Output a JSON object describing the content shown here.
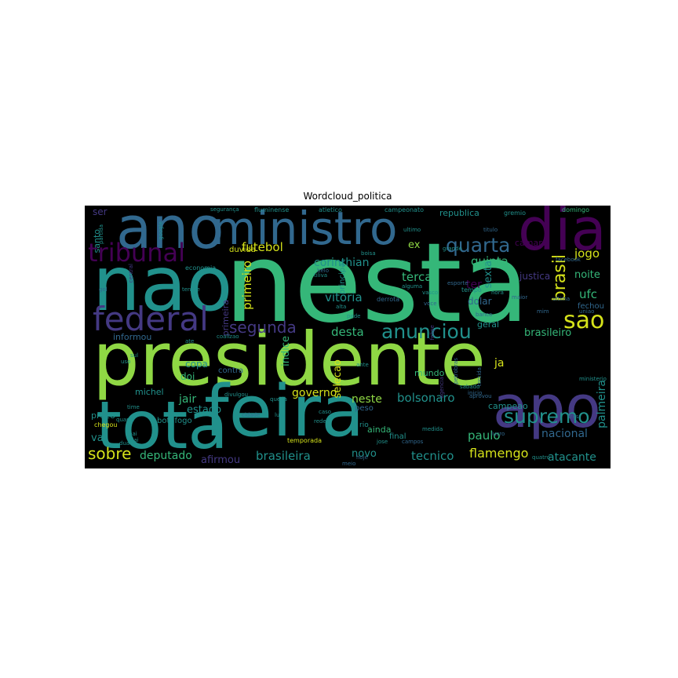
{
  "figure": {
    "title": "Wordcloud_politica",
    "palette": {
      "yellow": "#d5e21a",
      "lime": "#8fd744",
      "green": "#35b779",
      "teal": "#21918c",
      "blue": "#31688e",
      "indigo": "#443983",
      "purple": "#440154",
      "background": "#000000"
    },
    "words": [
      {
        "text": "nesta",
        "color": "green"
      },
      {
        "text": "presidente",
        "color": "lime"
      },
      {
        "text": "nao",
        "color": "teal"
      },
      {
        "text": "feira",
        "color": "teal"
      },
      {
        "text": "ano",
        "color": "blue"
      },
      {
        "text": "ministro",
        "color": "blue"
      },
      {
        "text": "dia",
        "color": "purple"
      },
      {
        "text": "apo",
        "color": "indigo"
      },
      {
        "text": "tota",
        "color": "teal"
      },
      {
        "text": "federal",
        "color": "indigo"
      },
      {
        "text": "tribunal",
        "color": "purple"
      },
      {
        "text": "anunciou",
        "color": "teal"
      },
      {
        "text": "sao",
        "color": "yellow"
      },
      {
        "text": "supremo",
        "color": "teal"
      },
      {
        "text": "quarta",
        "color": "blue"
      },
      {
        "text": "sobre",
        "color": "yellow"
      },
      {
        "text": "segunda",
        "color": "indigo"
      },
      {
        "text": "brasil",
        "color": "yellow"
      },
      {
        "text": "flamengo",
        "color": "yellow"
      },
      {
        "text": "deputado",
        "color": "green"
      },
      {
        "text": "brasileira",
        "color": "teal"
      },
      {
        "text": "bolsonaro",
        "color": "teal"
      },
      {
        "text": "paulo",
        "color": "green"
      },
      {
        "text": "tecnico",
        "color": "teal"
      },
      {
        "text": "nacional",
        "color": "blue"
      },
      {
        "text": "atacante",
        "color": "teal"
      },
      {
        "text": "palmeira",
        "color": "teal"
      },
      {
        "text": "jogo",
        "color": "yellow"
      },
      {
        "text": "quinta",
        "color": "green"
      },
      {
        "text": "terca",
        "color": "green"
      },
      {
        "text": "vitoria",
        "color": "teal"
      },
      {
        "text": "desta",
        "color": "green"
      },
      {
        "text": "futebol",
        "color": "yellow"
      },
      {
        "text": "corinthian",
        "color": "teal"
      },
      {
        "text": "primeiro",
        "color": "yellow"
      },
      {
        "text": "governo",
        "color": "yellow"
      },
      {
        "text": "neste",
        "color": "lime"
      },
      {
        "text": "jair",
        "color": "green"
      },
      {
        "text": "estado",
        "color": "teal"
      },
      {
        "text": "afirmou",
        "color": "indigo"
      },
      {
        "text": "novo",
        "color": "teal"
      },
      {
        "text": "ufc",
        "color": "green"
      },
      {
        "text": "noite",
        "color": "green"
      },
      {
        "text": "sexta",
        "color": "teal"
      },
      {
        "text": "brasileiro",
        "color": "green"
      },
      {
        "text": "camara",
        "color": "purple"
      },
      {
        "text": "republica",
        "color": "teal"
      },
      {
        "text": "ex",
        "color": "lime"
      },
      {
        "text": "indice",
        "color": "green"
      },
      {
        "text": "selecao",
        "color": "yellow"
      },
      {
        "text": "ja",
        "color": "yellow"
      },
      {
        "text": "copa",
        "color": "teal"
      },
      {
        "text": "doi",
        "color": "green"
      },
      {
        "text": "vai",
        "color": "teal"
      },
      {
        "text": "preco",
        "color": "teal"
      },
      {
        "text": "michel",
        "color": "teal"
      },
      {
        "text": "justica",
        "color": "indigo"
      },
      {
        "text": "ter",
        "color": "purple"
      },
      {
        "text": "geral",
        "color": "teal"
      },
      {
        "text": "dolar",
        "color": "blue"
      },
      {
        "text": "mundo",
        "color": "green"
      },
      {
        "text": "campeao",
        "color": "teal"
      },
      {
        "text": "fechou",
        "color": "blue"
      },
      {
        "text": "santo",
        "color": "teal"
      },
      {
        "text": "ser",
        "color": "indigo"
      },
      {
        "text": "informou",
        "color": "blue"
      },
      {
        "text": "principal",
        "color": "teal"
      },
      {
        "text": "duvida",
        "color": "yellow"
      },
      {
        "text": "contra",
        "color": "blue"
      },
      {
        "text": "primeira",
        "color": "indigo"
      },
      {
        "text": "botafogo",
        "color": "teal"
      },
      {
        "text": "ainda",
        "color": "green"
      },
      {
        "text": "final",
        "color": "teal"
      },
      {
        "text": "peso",
        "color": "blue"
      },
      {
        "text": "rio",
        "color": "teal"
      },
      {
        "text": "fluminense",
        "color": "teal"
      },
      {
        "text": "atletico",
        "color": "teal"
      },
      {
        "text": "campeonato",
        "color": "teal"
      },
      {
        "text": "gremio",
        "color": "teal"
      },
      {
        "text": "domingo",
        "color": "green"
      },
      {
        "text": "economia",
        "color": "teal"
      },
      {
        "text": "temporada",
        "color": "yellow"
      },
      {
        "text": "chegou",
        "color": "yellow"
      },
      {
        "text": "tempo",
        "color": "teal"
      },
      {
        "text": "derrota",
        "color": "blue"
      },
      {
        "text": "quatro",
        "color": "teal"
      },
      {
        "text": "banco",
        "color": "blue"
      },
      {
        "text": "maior",
        "color": "blue"
      },
      {
        "text": "uniao",
        "color": "blue"
      },
      {
        "text": "ministerio",
        "color": "teal"
      },
      {
        "text": "petrobras",
        "color": "blue"
      },
      {
        "text": "torcida",
        "color": "blue"
      },
      {
        "text": "queda",
        "color": "teal"
      },
      {
        "text": "ate",
        "color": "teal"
      },
      {
        "text": "grande",
        "color": "teal"
      },
      {
        "text": "partida",
        "color": "teal"
      },
      {
        "text": "google",
        "color": "teal"
      },
      {
        "text": "boisa",
        "color": "teal"
      },
      {
        "text": "ultimo",
        "color": "teal"
      },
      {
        "text": "titulo",
        "color": "blue"
      },
      {
        "text": "inicio",
        "color": "blue"
      },
      {
        "text": "sabado",
        "color": "teal"
      },
      {
        "text": "voce",
        "color": "blue"
      },
      {
        "text": "pode",
        "color": "teal"
      },
      {
        "text": "alta",
        "color": "teal"
      },
      {
        "text": "luta",
        "color": "teal"
      },
      {
        "text": "rede",
        "color": "teal"
      },
      {
        "text": "jose",
        "color": "teal"
      },
      {
        "text": "time",
        "color": "teal"
      },
      {
        "text": "tiliva",
        "color": "teal"
      },
      {
        "text": "dua",
        "color": "teal"
      },
      {
        "text": "gol",
        "color": "blue"
      },
      {
        "text": "ante",
        "color": "teal"
      },
      {
        "text": "nora",
        "color": "teal"
      },
      {
        "text": "divulgou",
        "color": "teal"
      },
      {
        "text": "central",
        "color": "indigo"
      },
      {
        "text": "tenere",
        "color": "teal"
      },
      {
        "text": "coalizao",
        "color": "teal"
      },
      {
        "text": "alguma",
        "color": "teal"
      },
      {
        "text": "felipe",
        "color": "indigo"
      },
      {
        "text": "agencia",
        "color": "indigo"
      },
      {
        "text": "ultima",
        "color": "blue"
      },
      {
        "text": "aprovou",
        "color": "blue"
      },
      {
        "text": "belo",
        "color": "blue"
      },
      {
        "text": "meio",
        "color": "blue"
      },
      {
        "text": "mim",
        "color": "blue"
      },
      {
        "text": "facebook",
        "color": "blue"
      },
      {
        "text": "campos",
        "color": "blue"
      },
      {
        "text": "cidade",
        "color": "blue"
      },
      {
        "text": "hoje",
        "color": "blue"
      },
      {
        "text": "vasco",
        "color": "teal"
      },
      {
        "text": "esporte",
        "color": "blue"
      },
      {
        "text": "lucro",
        "color": "blue"
      },
      {
        "text": "medida",
        "color": "teal"
      },
      {
        "text": "tres",
        "color": "blue"
      },
      {
        "text": "dai",
        "color": "teal"
      },
      {
        "text": "pai",
        "color": "teal"
      },
      {
        "text": "uso",
        "color": "teal"
      },
      {
        "text": "sul",
        "color": "teal"
      },
      {
        "text": "caso",
        "color": "teal"
      },
      {
        "text": "quarta",
        "color": "teal"
      },
      {
        "text": "segurança",
        "color": "teal"
      }
    ]
  }
}
